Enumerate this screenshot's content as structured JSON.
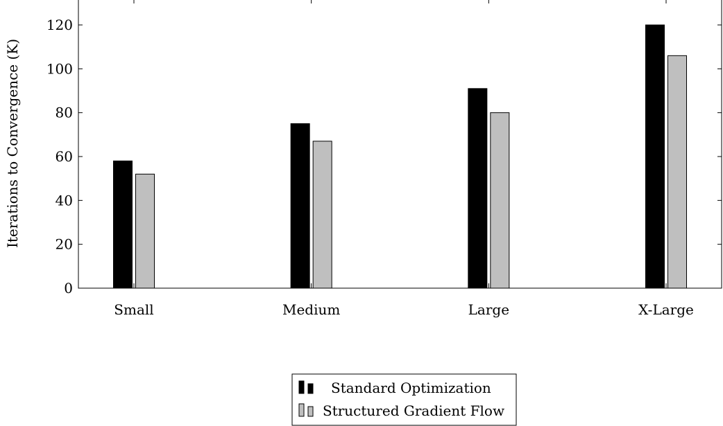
{
  "chart_data": {
    "type": "bar",
    "title": "",
    "xlabel": "",
    "ylabel": "Iterations to Convergence (K)",
    "categories": [
      "Small",
      "Medium",
      "Large",
      "X-Large"
    ],
    "series": [
      {
        "name": "Standard Optimization",
        "values": [
          58,
          75,
          91,
          120
        ],
        "color": "#000000"
      },
      {
        "name": "Structured Gradient Flow",
        "values": [
          52,
          67,
          80,
          106
        ],
        "color": "#bfbfbf"
      }
    ],
    "yticks": [
      0,
      20,
      40,
      60,
      80,
      100,
      120
    ],
    "ylim": [
      0,
      132
    ],
    "grid": false,
    "legend_position": "bottom-center"
  }
}
